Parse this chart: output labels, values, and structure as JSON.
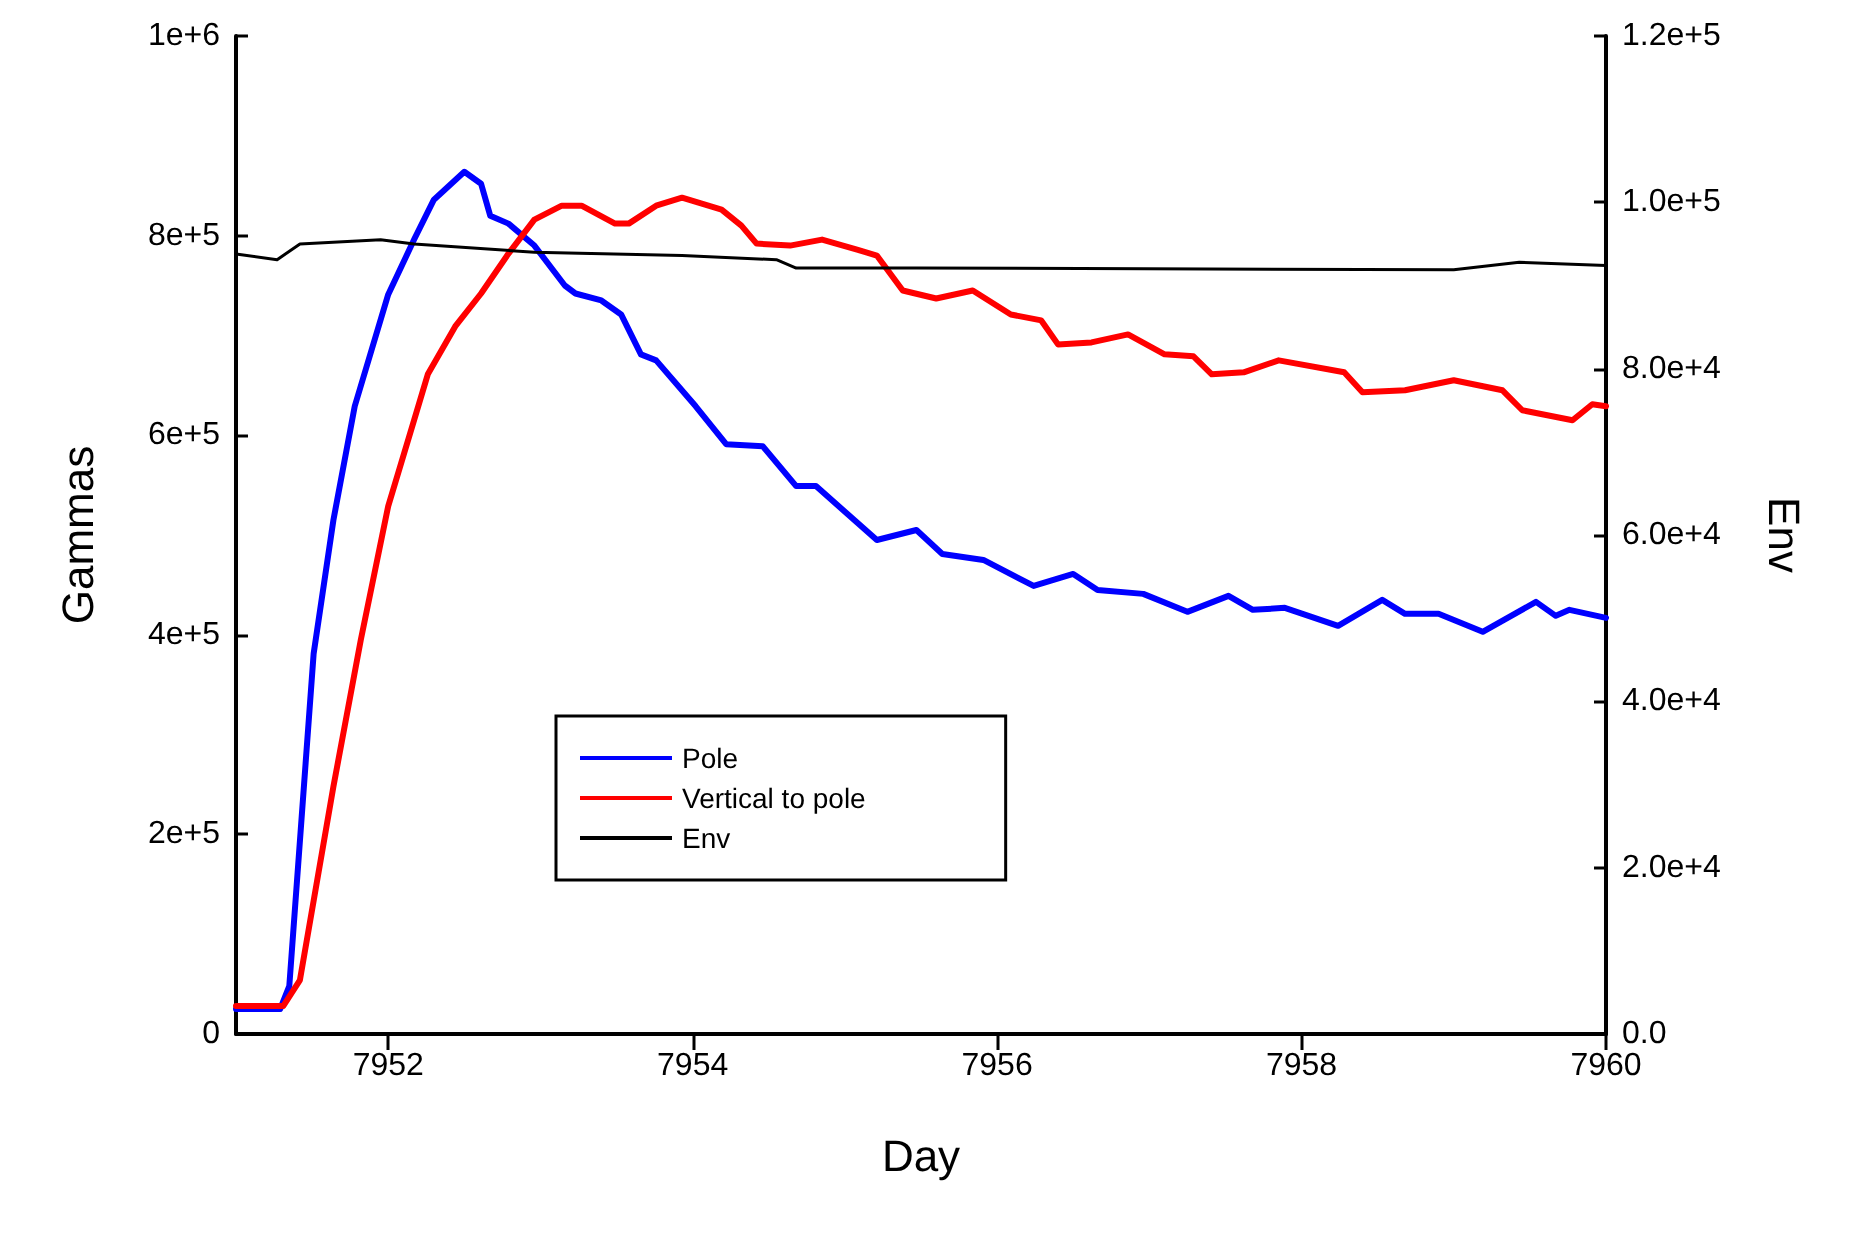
{
  "chart_data": {
    "type": "line",
    "xlabel": "Day",
    "ylabel": "Gammas",
    "y2label": "Env",
    "xlim": [
      7951,
      7960
    ],
    "xticks": [
      7952,
      7954,
      7956,
      7958,
      7960
    ],
    "ylim": [
      0,
      1000000
    ],
    "yticks": [
      {
        "value": 0,
        "label": "0"
      },
      {
        "value": 200000,
        "label": "2e+5"
      },
      {
        "value": 400000,
        "label": "4e+5"
      },
      {
        "value": 600000,
        "label": "6e+5"
      },
      {
        "value": 800000,
        "label": "8e+5"
      },
      {
        "value": 1000000,
        "label": "1e+6"
      }
    ],
    "y2lim": [
      0,
      120000
    ],
    "y2ticks": [
      {
        "value": 0,
        "label": "0.0"
      },
      {
        "value": 20000,
        "label": "2.0e+4"
      },
      {
        "value": 40000,
        "label": "4.0e+4"
      },
      {
        "value": 60000,
        "label": "6.0e+4"
      },
      {
        "value": 80000,
        "label": "8.0e+4"
      },
      {
        "value": 100000,
        "label": "1.0e+5"
      },
      {
        "value": 120000,
        "label": "1.2e+5"
      }
    ],
    "grid": false,
    "legend": "bottom",
    "marker": "none",
    "line_style": "solid",
    "series": [
      {
        "name": "Pole",
        "color": "#0000ff",
        "x": [
          7951,
          7951.29,
          7951.35,
          7951.51,
          7951.64,
          7951.78,
          7952,
          7952.17,
          7952.3,
          7952.5,
          7952.61,
          7952.67,
          7952.79,
          7952.96,
          7953.16,
          7953.23,
          7953.4,
          7953.53,
          7953.66,
          7953.76,
          7954.02,
          7954.22,
          7954.46,
          7954.68,
          7954.81,
          7955.21,
          7955.47,
          7955.64,
          7955.91,
          7956.24,
          7956.5,
          7956.66,
          7956.96,
          7957.25,
          7957.52,
          7957.68,
          7957.89,
          7958.24,
          7958.53,
          7958.68,
          7958.9,
          7959.19,
          7959.54,
          7959.67,
          7959.76,
          7960
        ],
        "values": [
          25000,
          25000,
          48000,
          381000,
          515000,
          629000,
          741000,
          796000,
          836000,
          864000,
          852000,
          820000,
          812000,
          790000,
          750000,
          742000,
          735000,
          721000,
          681000,
          675000,
          629000,
          591000,
          589000,
          549000,
          549000,
          495000,
          505000,
          481000,
          475000,
          449000,
          461000,
          445000,
          441000,
          423000,
          439000,
          425000,
          427000,
          409000,
          435000,
          421000,
          421000,
          403000,
          433000,
          419000,
          425000,
          417000
        ]
      },
      {
        "name": "Vertical to pole",
        "color": "#ff0000",
        "x": [
          7951,
          7951.31,
          7951.42,
          7951.64,
          7951.82,
          7952,
          7952.17,
          7952.26,
          7952.44,
          7952.61,
          7952.79,
          7952.96,
          7953.14,
          7953.27,
          7953.49,
          7953.58,
          7953.76,
          7953.93,
          7954.19,
          7954.32,
          7954.42,
          7954.64,
          7954.85,
          7955.08,
          7955.21,
          7955.38,
          7955.6,
          7955.84,
          7956.09,
          7956.29,
          7956.4,
          7956.62,
          7956.86,
          7957.1,
          7957.29,
          7957.41,
          7957.62,
          7957.85,
          7958.28,
          7958.4,
          7958.68,
          7959,
          7959.32,
          7959.45,
          7959.78,
          7959.91,
          7960
        ],
        "values": [
          28000,
          28000,
          54000,
          248000,
          395000,
          529000,
          615000,
          661000,
          709000,
          742000,
          782000,
          816000,
          830000,
          830000,
          812000,
          812000,
          830000,
          838000,
          826000,
          810000,
          792000,
          790000,
          796000,
          786000,
          780000,
          745000,
          737000,
          745000,
          721000,
          715000,
          691000,
          693000,
          701000,
          681000,
          679000,
          661000,
          663000,
          675000,
          663000,
          643000,
          645000,
          655000,
          645000,
          625000,
          615000,
          631000,
          629000
        ]
      },
      {
        "name": "Env",
        "color": "#000000",
        "axis": "y2",
        "x": [
          7951,
          7951.27,
          7951.42,
          7951.95,
          7952.17,
          7952.96,
          7953.93,
          7954.55,
          7954.68,
          7955.47,
          7959,
          7959.43,
          7960
        ],
        "values": [
          93800,
          93100,
          95000,
          95500,
          95000,
          94000,
          93600,
          93100,
          92100,
          92100,
          91900,
          92800,
          92400
        ]
      }
    ]
  }
}
